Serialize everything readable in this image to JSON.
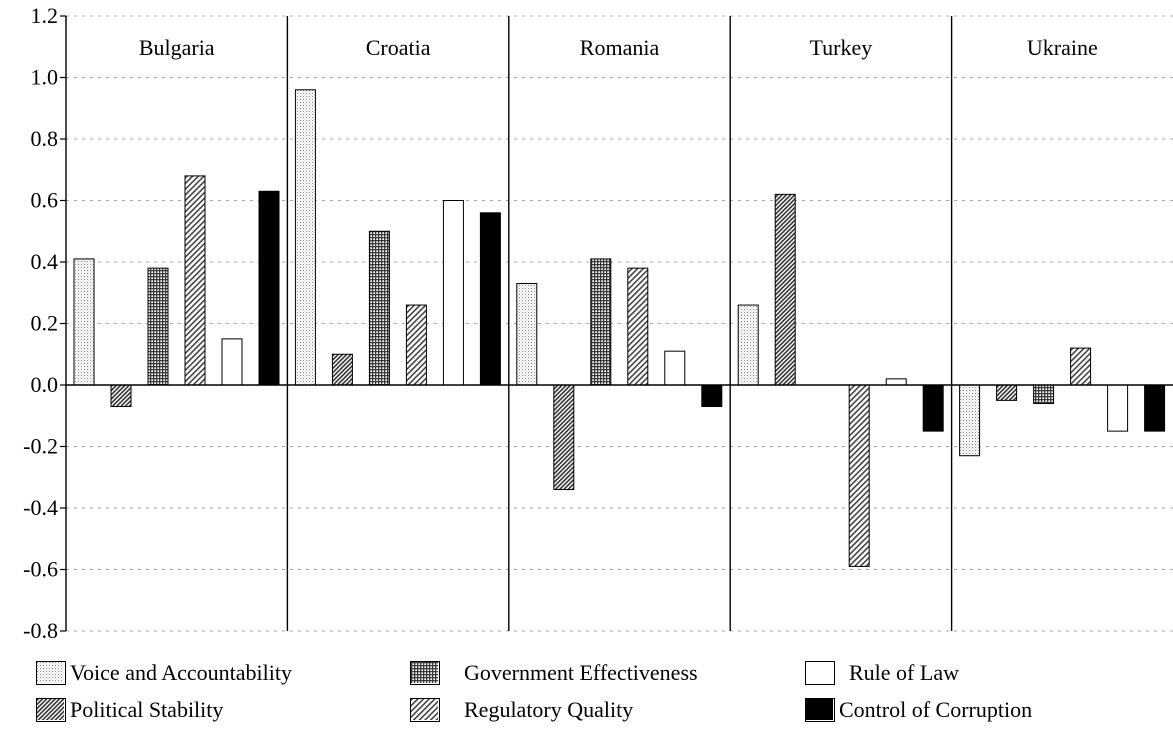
{
  "chart_data": {
    "type": "bar",
    "categories": [
      "Bulgaria",
      "Croatia",
      "Romania",
      "Turkey",
      "Ukraine"
    ],
    "series": [
      {
        "name": "Voice and Accountability",
        "pattern": "light-dots",
        "values": [
          0.41,
          0.96,
          0.33,
          0.26,
          -0.23
        ]
      },
      {
        "name": "Political Stability",
        "pattern": "diag-dense",
        "values": [
          -0.07,
          0.1,
          -0.34,
          0.62,
          -0.05
        ]
      },
      {
        "name": "Government Effectiveness",
        "pattern": "crosshatch",
        "values": [
          0.38,
          0.5,
          0.41,
          null,
          -0.06
        ]
      },
      {
        "name": "Regulatory Quality",
        "pattern": "diag-medium",
        "values": [
          0.68,
          0.26,
          0.38,
          -0.59,
          0.12
        ]
      },
      {
        "name": "Rule of Law",
        "pattern": "white",
        "values": [
          0.15,
          0.6,
          0.11,
          0.02,
          -0.15
        ]
      },
      {
        "name": "Control of Corruption",
        "pattern": "black",
        "values": [
          0.63,
          0.56,
          -0.07,
          -0.15,
          -0.15
        ]
      }
    ],
    "yticks": [
      "1.2",
      "1.0",
      "0.8",
      "0.6",
      "0.4",
      "0.2",
      "0.0",
      "-0.2",
      "-0.4",
      "-0.6",
      "-0.8"
    ],
    "ylim": [
      -0.8,
      1.2
    ],
    "grid": true,
    "legend_position": "bottom",
    "title": "",
    "xlabel": "",
    "ylabel": ""
  }
}
